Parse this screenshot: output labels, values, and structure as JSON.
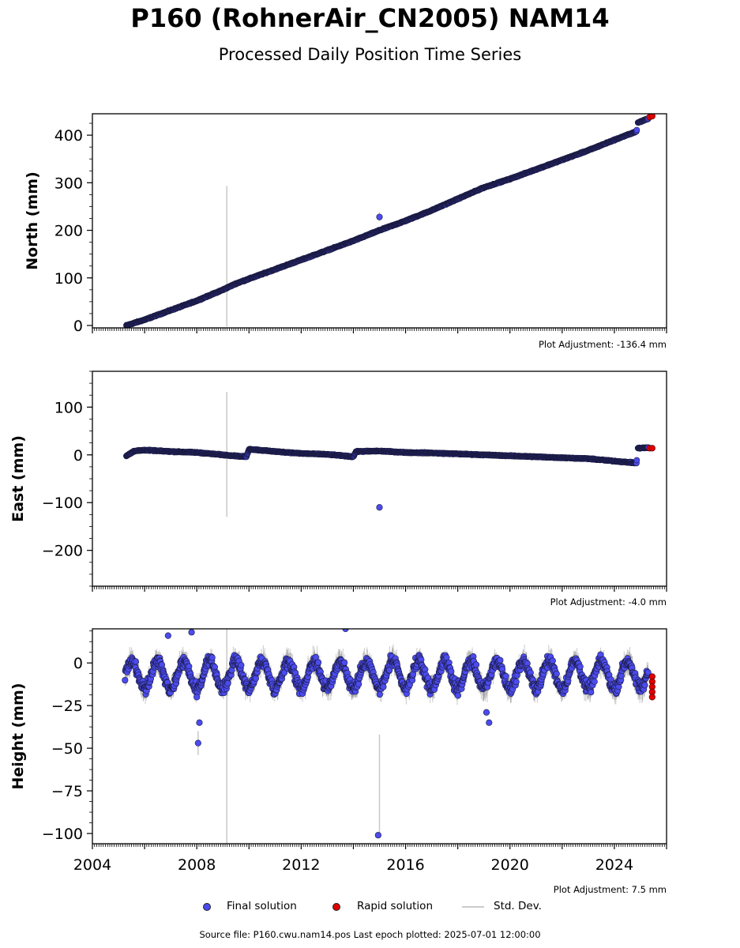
{
  "title": "P160 (RohnerAir_CN2005) NAM14",
  "subtitle": "Processed Daily Position Time Series",
  "legend": {
    "final": "Final solution",
    "rapid": "Rapid solution",
    "stddev": "Std. Dev."
  },
  "footer": "Source file: P160.cwu.nam14.pos  Last epoch plotted: 2025-07-01 12:00:00",
  "colors": {
    "final": "#4b4bee",
    "rapid": "#e00000",
    "stddev": "#c8c8c8",
    "edge": "#1a1a40"
  },
  "chart_data": [
    {
      "type": "scatter",
      "ylabel": "North (mm)",
      "adjustment": "Plot Adjustment: -136.4 mm",
      "xlim": [
        2004.0,
        2026.0
      ],
      "ylim": [
        -5,
        445
      ],
      "yticks": [
        0,
        100,
        200,
        300,
        400
      ],
      "yticks_text": [
        "0",
        "100",
        "200",
        "300",
        "400"
      ],
      "series": [
        {
          "name": "Final solution",
          "points": [
            [
              2005.3,
              0
            ],
            [
              2006.0,
              12
            ],
            [
              2007.0,
              32
            ],
            [
              2008.0,
              52
            ],
            [
              2009.0,
              75
            ],
            [
              2009.5,
              88
            ],
            [
              2010.0,
              98
            ],
            [
              2011.0,
              118
            ],
            [
              2012.0,
              138
            ],
            [
              2013.0,
              158
            ],
            [
              2014.0,
              178
            ],
            [
              2015.0,
              200
            ],
            [
              2016.0,
              220
            ],
            [
              2017.0,
              242
            ],
            [
              2018.0,
              266
            ],
            [
              2019.0,
              290
            ],
            [
              2020.0,
              308
            ],
            [
              2021.0,
              328
            ],
            [
              2022.0,
              348
            ],
            [
              2023.0,
              368
            ],
            [
              2024.0,
              390
            ],
            [
              2024.85,
              408
            ],
            [
              2024.9,
              426
            ],
            [
              2025.3,
              435
            ]
          ],
          "outliers": [
            [
              2015.0,
              228
            ]
          ]
        },
        {
          "name": "Rapid solution",
          "points": [
            [
              2025.35,
              438
            ],
            [
              2025.45,
              440
            ]
          ]
        }
      ],
      "stddev_spikes": [
        [
          2009.15,
          -2,
          293
        ],
        [
          2015.0,
          220,
          238
        ]
      ]
    },
    {
      "type": "scatter",
      "ylabel": "East (mm)",
      "adjustment": "Plot Adjustment: -4.0 mm",
      "xlim": [
        2004.0,
        2026.0
      ],
      "ylim": [
        -275,
        175
      ],
      "yticks": [
        -200,
        -100,
        0,
        100
      ],
      "yticks_text": [
        "−200",
        "−100",
        "0",
        "100"
      ],
      "series": [
        {
          "name": "Final solution",
          "points": [
            [
              2005.3,
              -2
            ],
            [
              2005.6,
              8
            ],
            [
              2006.0,
              10
            ],
            [
              2007.0,
              7
            ],
            [
              2008.0,
              5
            ],
            [
              2009.0,
              0
            ],
            [
              2009.9,
              -4
            ],
            [
              2010.0,
              12
            ],
            [
              2011.0,
              7
            ],
            [
              2012.0,
              3
            ],
            [
              2013.0,
              1
            ],
            [
              2014.0,
              -4
            ],
            [
              2014.1,
              7
            ],
            [
              2015.0,
              8
            ],
            [
              2016.0,
              5
            ],
            [
              2017.0,
              4
            ],
            [
              2018.0,
              2
            ],
            [
              2019.0,
              0
            ],
            [
              2020.0,
              -2
            ],
            [
              2021.0,
              -4
            ],
            [
              2022.0,
              -6
            ],
            [
              2023.0,
              -8
            ],
            [
              2024.0,
              -13
            ],
            [
              2024.85,
              -17
            ],
            [
              2024.9,
              14
            ],
            [
              2025.3,
              15
            ]
          ],
          "outliers": [
            [
              2015.0,
              -110
            ]
          ]
        },
        {
          "name": "Rapid solution",
          "points": [
            [
              2025.35,
              14
            ],
            [
              2025.45,
              14
            ]
          ]
        }
      ],
      "stddev_spikes": [
        [
          2009.15,
          -130,
          132
        ]
      ]
    },
    {
      "type": "scatter",
      "ylabel": "Height (mm)",
      "adjustment": "Plot Adjustment: 7.5 mm",
      "xlim": [
        2004.0,
        2026.0
      ],
      "ylim": [
        -106,
        20
      ],
      "yticks": [
        -100,
        -75,
        -50,
        -25,
        0
      ],
      "yticks_text": [
        "−100",
        "−75",
        "−50",
        "−25",
        "0"
      ],
      "xticks": [
        2004,
        2008,
        2012,
        2016,
        2020,
        2024
      ],
      "xticks_text": [
        "2004",
        "2008",
        "2012",
        "2016",
        "2020",
        "2024"
      ],
      "seasonal": {
        "mean": -7,
        "amplitude": 8,
        "scatter": 5
      },
      "series": [
        {
          "name": "Final solution",
          "outliers": [
            [
              2008.05,
              -47
            ],
            [
              2008.1,
              -35
            ],
            [
              2008.0,
              -20
            ],
            [
              2014.95,
              -101
            ],
            [
              2019.2,
              -35
            ],
            [
              2019.1,
              -29
            ],
            [
              2013.7,
              20
            ],
            [
              2006.9,
              16
            ],
            [
              2007.8,
              18
            ]
          ]
        },
        {
          "name": "Rapid solution",
          "points": [
            [
              2025.45,
              -8
            ],
            [
              2025.45,
              -11
            ],
            [
              2025.45,
              -14
            ],
            [
              2025.45,
              -17
            ],
            [
              2025.45,
              -20
            ]
          ]
        }
      ],
      "stddev_spikes": [
        [
          2009.15,
          -106,
          20
        ],
        [
          2015.0,
          -101,
          -42
        ],
        [
          2008.05,
          -54,
          -40
        ]
      ]
    }
  ]
}
